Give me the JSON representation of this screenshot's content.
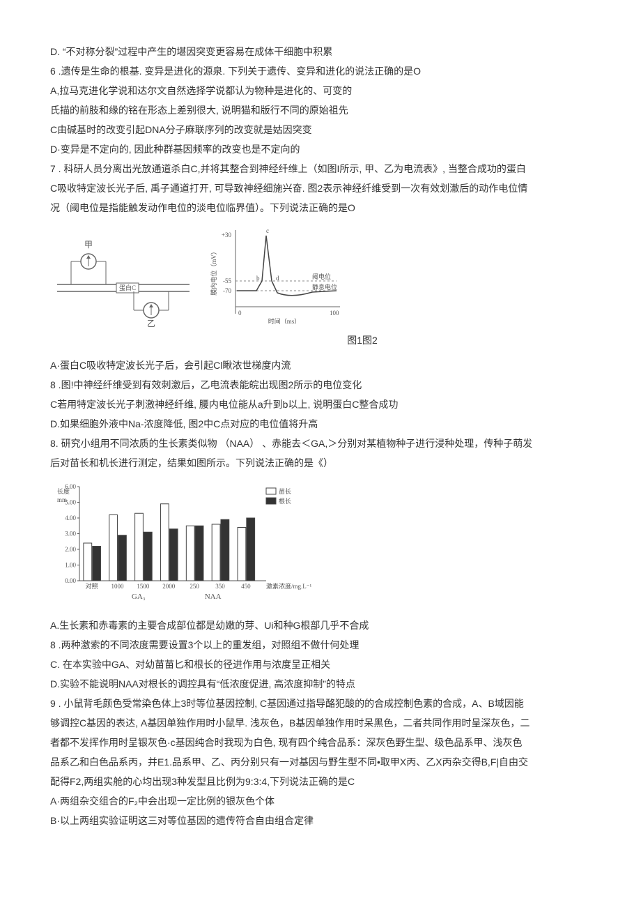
{
  "q5": {
    "optD": "D. “不对称分裂”过程中产生的堪因突变更容易在成体干细胞中积累"
  },
  "q6": {
    "stem": "6 .遗传是生命的根基. 变异是进化的源泉. 下列关于遗传、变异和进化的说法正确的是O",
    "optA": "A,拉马克进化学说和达尔文自然选择学说都认为物种是进化的、可变的",
    "optA2": "氏描的前肢和缘的铭在形态上差别很大, 说明猫和版行不同的原始祖先",
    "optC": "C由碱基时的改变引起DNA分子麻联序列的改变就是姑因突变",
    "optD": "D·变异是不定向的, 因此种群基因频率的改变也是不定向的"
  },
  "q7": {
    "stem1": "7 . 科研人员分离出光放通道杀白C,并将其整合到神经纤维上（如图I所示, 甲、乙为电流表》, 当整合成功的蛋白",
    "stem2": "C吸收特定波长光子后, 禹子通道打开, 可导致神经细施兴奋. 图2表示神经纤维受到一次有效划澈后的动作电位情",
    "stem3": "况（阈电位是指能触发动作电位的淡电位临界值）。下列说法正确的是O",
    "fig1": {
      "label_jia": "甲",
      "label_yi": "乙",
      "label_protein": "蛋白C"
    },
    "fig2": {
      "y_max": "+30",
      "y_mid": "-55",
      "y_min": "-70",
      "x_start": "0",
      "x_end": "100",
      "x_label": "时间（ms）",
      "y_label": "膜内电位（mV）",
      "label_c": "c",
      "label_b": "b",
      "label_d": "d",
      "label_yudianwei": "阈电位",
      "label_jingxi": "静息电位"
    },
    "caption": "图1图2",
    "optA": "A·蛋白C吸收特定波长光子后，会引起Cl瞅浓世梯度内流",
    "optB": "8 .图!中神经纤维受到有效刺激后，乙电流表能皖出现图2所示的电位变化",
    "optC": "C若用特定波长光子刺激神经纤维, 腰内电位能从a升到b以上, 说明蛋白C整合成功",
    "optD": "D.如果细胞外液中Na-浓度降低, 图2中C点对应的电位值将升高"
  },
  "q8": {
    "stem1": "8. 研究小组用不同浓质的生长素类似物 （NAA） 、赤能去＜GA,＞分别对某植物种子进行浸种处理，传种子萌发",
    "stem2": "后对苗长和机长进行测定，结果如图所示。下列说法正确的是《）",
    "chart": {
      "y_label": "长度mm",
      "y_ticks": [
        "0.00",
        "1.00",
        "2.00",
        "3.00",
        "4.00",
        "5.00",
        "6.00"
      ],
      "x_categories": [
        "对照",
        "1000",
        "1500",
        "2000",
        "250",
        "350",
        "450"
      ],
      "x_group_left": "GA₃",
      "x_group_right": "NAA",
      "x_unit": "激素浓度/mg.L⁻¹",
      "legend1": "苗长",
      "legend2": "根长",
      "series_miao": [
        2.4,
        4.2,
        4.3,
        4.9,
        3.5,
        3.6,
        3.4
      ],
      "series_gen": [
        2.2,
        2.9,
        3.1,
        3.3,
        3.5,
        3.9,
        4.0
      ],
      "color_miao": "#ffffff",
      "color_gen": "#333333",
      "bar_border": "#444444",
      "axis_color": "#555555",
      "font_size_axis": 9
    },
    "optA": "A.生长素和赤毒素的主要合成部位都是幼嫩的芽、Ui和种G根部几乎不合成",
    "optB": "8 .两种激索的不同浓度需要设置3个以上的重发组，对照组不做什何处理",
    "optC": "C. 在本实验中GA、对幼苗苗匕和根长的径进作用与浓度呈正相关",
    "optD": "D.实验不能说明NAA对根长的调控具有“低浓度促进, 高浓度抑制”的特点"
  },
  "q9": {
    "stem1": "9 . 小鼠背毛颜色受常染色体上3时等位基因控制, C基因通过指导酪犯酸的的合成控制色素的合成，A、B域因能",
    "stem2": "够调控C基因的表达, A基因单独作用时小鼠早. 浅灰色，B基因单独作用时呆黑色，二者共同作用时呈深灰色，二",
    "stem3": "者都不发挥作用时呈银灰色·c基因纯合时我现为白色, 现有四个纯合品系：深灰色野生型、级色品系甲、浅灰色",
    "stem4": "品系乙和白色品系丙，并E1.品系甲、乙、丙分别只有一对基因与野生型不同•取甲X丙、乙X丙杂交得B,F|自由交",
    "stem5": "配得F2,两组实舱的心均出现3种发型且比例为9:3:4,下列说法正确的是C",
    "optA": "A·两组杂交组合的F₂中会出现一定比例的银灰色个体",
    "optB": "B·以上两组实验证明这三对等位基因的遗传符合自由组合定律"
  }
}
